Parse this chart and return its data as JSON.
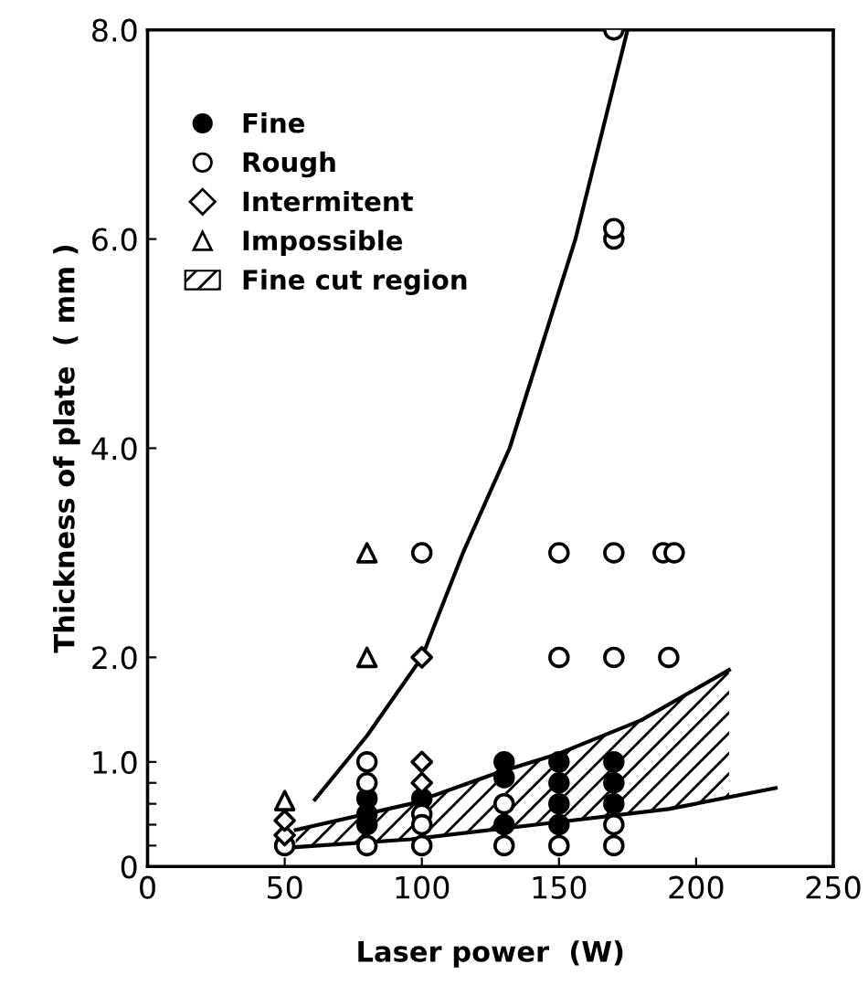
{
  "chart_data": {
    "type": "scatter",
    "xlabel": "Laser power  (W)",
    "ylabel": "Thickness of plate  ( mm )",
    "xlim": [
      0,
      250
    ],
    "xticks": [
      0,
      50,
      100,
      150,
      200,
      250
    ],
    "ylim": [
      0,
      8
    ],
    "yticks": [
      0,
      {
        "value": 0.2,
        "label": null
      },
      {
        "value": 0.4,
        "label": null
      },
      {
        "value": 0.6,
        "label": null
      },
      {
        "value": 0.8,
        "label": null
      },
      {
        "value": 1,
        "label": "1.0"
      },
      {
        "value": 2,
        "label": "2.0"
      },
      {
        "value": 4,
        "label": "4.0"
      },
      {
        "value": 6,
        "label": "6.0"
      },
      {
        "value": 8,
        "label": "8.0"
      }
    ],
    "grid": false,
    "legend": "top left",
    "series": [
      {
        "name": "Fine",
        "marker": "circle",
        "color": "#000000",
        "x": [
          80,
          80,
          80,
          100,
          130,
          130,
          130,
          150,
          150,
          150,
          150,
          170,
          170,
          170
        ],
        "values": [
          0.65,
          0.5,
          0.4,
          0.65,
          1.0,
          0.85,
          0.4,
          1.0,
          0.8,
          0.6,
          0.4,
          1.0,
          0.8,
          0.6
        ]
      },
      {
        "name": "Rough",
        "marker": "circle",
        "color": "#ffffff",
        "x": [
          50,
          80,
          80,
          80,
          100,
          100,
          100,
          100,
          130,
          130,
          150,
          150,
          150,
          170,
          170,
          170,
          170,
          170,
          170,
          170,
          188,
          192,
          190
        ],
        "values": [
          0.2,
          1.0,
          0.8,
          0.2,
          0.5,
          0.4,
          0.2,
          3.0,
          0.6,
          0.2,
          0.2,
          2.0,
          3.0,
          0.4,
          0.2,
          2.0,
          3.0,
          6.0,
          6.1,
          8.0,
          3.0,
          3.0,
          2.0
        ]
      },
      {
        "name": "Intermitent",
        "marker": "diamond",
        "color": "#ffffff",
        "x": [
          50,
          50,
          100,
          100,
          100
        ],
        "values": [
          0.3,
          0.44,
          1.0,
          0.8,
          2.0
        ]
      },
      {
        "name": "Impossible",
        "marker": "triangle",
        "color": "#ffffff",
        "x": [
          50,
          80,
          80
        ],
        "values": [
          0.63,
          2.0,
          3.0
        ]
      },
      {
        "name": "Fine cut region",
        "type": "area",
        "color": "#000000",
        "x": [
          54,
          96,
          128,
          150,
          180,
          212
        ],
        "values": [
          0.35,
          0.6,
          0.9,
          1.08,
          1.4,
          1.88
        ]
      },
      {
        "type": "line",
        "color": "#000000",
        "line_style": "solid",
        "x": [
          51,
          96,
          148,
          190,
          229
        ],
        "values": [
          0.18,
          0.26,
          0.42,
          0.55,
          0.75
        ]
      },
      {
        "type": "line",
        "color": "#000000",
        "line_style": "solid",
        "x": [
          61,
          80,
          100,
          115,
          132,
          156,
          175
        ],
        "values": [
          0.64,
          1.25,
          2.0,
          3.0,
          4.0,
          6.0,
          8.0
        ]
      }
    ]
  }
}
